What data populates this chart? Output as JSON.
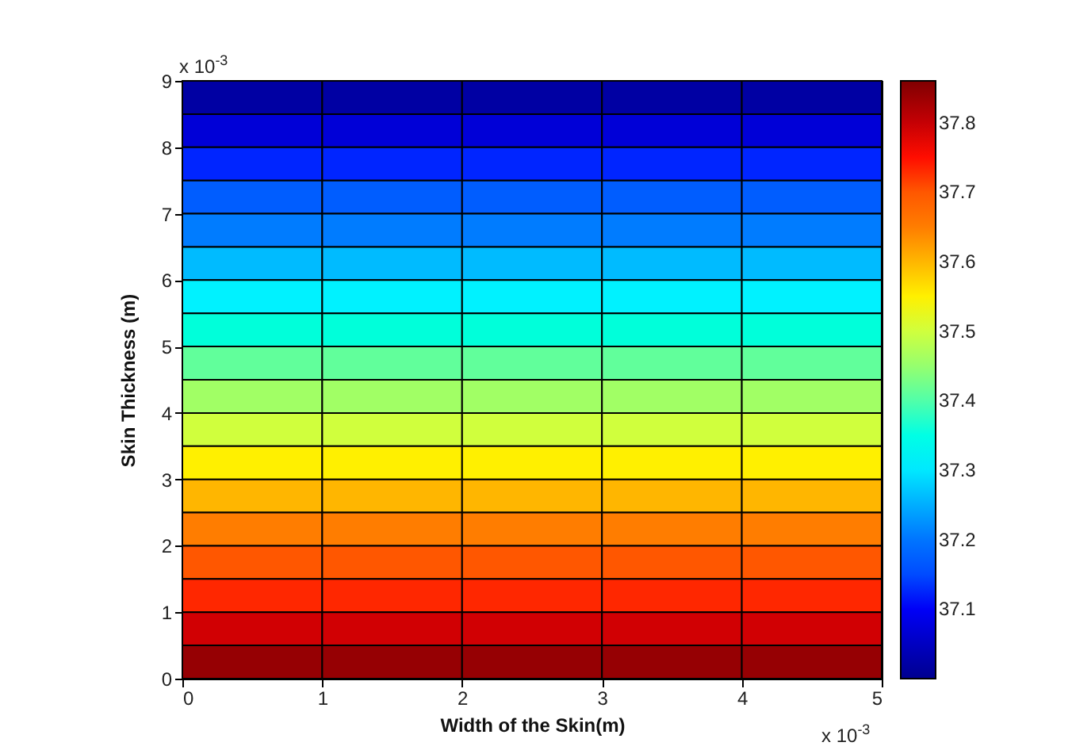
{
  "chart_data": {
    "type": "heatmap",
    "xlabel": "Width of the Skin(m)",
    "ylabel": "Skin Thickness (m)",
    "xlim": [
      0,
      5
    ],
    "xticks": [
      0,
      1,
      2,
      3,
      4,
      5
    ],
    "ylim": [
      0,
      9
    ],
    "yticks": [
      0,
      1,
      2,
      3,
      4,
      5,
      6,
      7,
      8,
      9
    ],
    "cells": [
      [
        37.02,
        37.02,
        37.02,
        37.02,
        37.02
      ],
      [
        37.07,
        37.07,
        37.07,
        37.07,
        37.07
      ],
      [
        37.12,
        37.12,
        37.12,
        37.12,
        37.12
      ],
      [
        37.17,
        37.17,
        37.17,
        37.17,
        37.17
      ],
      [
        37.21,
        37.21,
        37.21,
        37.21,
        37.21
      ],
      [
        37.26,
        37.26,
        37.26,
        37.26,
        37.26
      ],
      [
        37.31,
        37.31,
        37.31,
        37.31,
        37.31
      ],
      [
        37.36,
        37.36,
        37.36,
        37.36,
        37.36
      ],
      [
        37.41,
        37.41,
        37.41,
        37.41,
        37.41
      ],
      [
        37.46,
        37.46,
        37.46,
        37.46,
        37.46
      ],
      [
        37.5,
        37.5,
        37.5,
        37.5,
        37.5
      ],
      [
        37.55,
        37.55,
        37.55,
        37.55,
        37.55
      ],
      [
        37.6,
        37.6,
        37.6,
        37.6,
        37.6
      ],
      [
        37.65,
        37.65,
        37.65,
        37.65,
        37.65
      ],
      [
        37.7,
        37.7,
        37.7,
        37.7,
        37.7
      ],
      [
        37.74,
        37.74,
        37.74,
        37.74,
        37.74
      ],
      [
        37.79,
        37.79,
        37.79,
        37.79,
        37.79
      ],
      [
        37.84,
        37.84,
        37.84,
        37.84,
        37.84
      ]
    ],
    "clim": [
      37.0,
      37.86
    ],
    "cticks": [
      37.1,
      37.2,
      37.3,
      37.4,
      37.5,
      37.6,
      37.7,
      37.8
    ],
    "annotations": [
      "x 10$^{-3}$",
      "x 10$^{-3}$"
    ]
  }
}
